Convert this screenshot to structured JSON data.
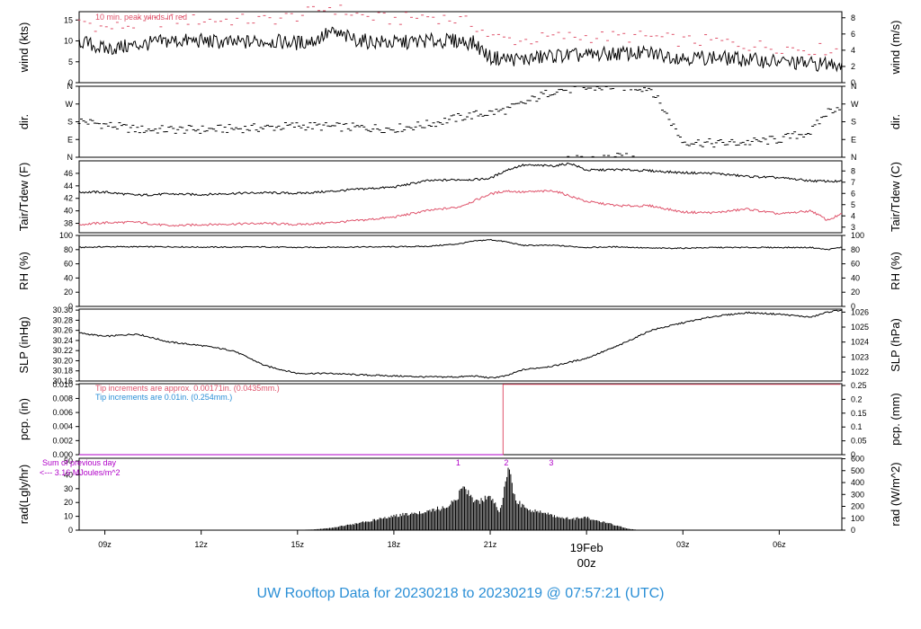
{
  "chart_data": {
    "type": "line",
    "title": "UW Rooftop Data for 20230218  to  20230219 @ 07:57:21  (UTC)",
    "x_ticks": [
      "09z",
      "12z",
      "15z",
      "18z",
      "21z",
      "03z",
      "06z"
    ],
    "date_label": "19Feb",
    "date_sublabel": "00z",
    "colors": {
      "primary": "#000000",
      "secondary": "#df536b",
      "tip_note_1": "#df536b",
      "tip_note_2": "#2b8fd6",
      "sun_notes": "#b000c8",
      "title": "#2b8fd6"
    },
    "panels": [
      {
        "id": "wind",
        "ylabel_left": "wind (kts)",
        "ylabel_right": "wind (m/s)",
        "ylim_left": [
          0,
          17
        ],
        "yticks_left": [
          "0",
          "5",
          "10",
          "15"
        ],
        "ylim_right": [
          0,
          8.75
        ],
        "yticks_right": [
          "0",
          "2",
          "4",
          "6",
          "8"
        ],
        "note": "10 min. peak winds in red",
        "series": [
          {
            "key": "wind_speed",
            "color": "#000000",
            "x_hours": [
              8.2,
              9,
              10,
              11,
              12,
              13,
              14,
              15,
              15.5,
              16,
              16.5,
              17,
              18,
              19,
              20,
              20.5,
              21,
              22,
              23,
              24,
              25,
              26,
              27,
              28,
              29,
              30,
              31,
              31.9
            ],
            "y": [
              10,
              8,
              9,
              10,
              10,
              9.5,
              10,
              9.5,
              10,
              12,
              11,
              10,
              9.5,
              10,
              10,
              9.5,
              6,
              5.5,
              6.5,
              6.5,
              7,
              7,
              6,
              6,
              5.5,
              5,
              4.5,
              4.5
            ]
          },
          {
            "key": "wind_peak",
            "color": "#df536b",
            "x_hours": [
              8.2,
              9,
              10,
              11,
              12,
              13,
              14,
              15,
              15.5,
              16,
              16.5,
              17,
              18,
              19,
              20,
              20.5,
              21,
              22,
              23,
              24,
              25,
              26,
              27,
              28,
              29,
              30,
              31,
              31.9
            ],
            "y": [
              15,
              13,
              14,
              15,
              15,
              15,
              15,
              16,
              17,
              18,
              17,
              16,
              15,
              16,
              15,
              14,
              11,
              10,
              11,
              11,
              11,
              11,
              10,
              10,
              9,
              8.5,
              8,
              8
            ]
          }
        ]
      },
      {
        "id": "dir",
        "ylabel_left": "dir.",
        "ylabel_right": "dir.",
        "ylim_left": [
          0,
          360
        ],
        "yticks_left": [
          "N",
          "E",
          "S",
          "W",
          "N"
        ],
        "ylim_right": [
          0,
          360
        ],
        "yticks_right": [
          "N",
          "E",
          "S",
          "W",
          "N"
        ],
        "series": [
          {
            "key": "wind_dir",
            "color": "#000000",
            "style": "dashes",
            "x_hours": [
              8.2,
              9,
              10,
              11,
              12,
              13,
              14,
              15,
              16,
              17,
              18,
              19,
              20,
              20.5,
              21,
              21.5,
              22,
              23,
              24,
              25,
              26,
              27,
              28,
              29,
              30,
              31,
              31.5,
              31.9
            ],
            "y": [
              185,
              165,
              140,
              140,
              140,
              145,
              150,
              160,
              155,
              150,
              145,
              165,
              200,
              215,
              225,
              240,
              270,
              340,
              350,
              360,
              350,
              80,
              70,
              75,
              90,
              130,
              230,
              260
            ]
          }
        ]
      },
      {
        "id": "temp",
        "ylabel_left": "Tair/Tdew (F)",
        "ylabel_right": "Tair/Tdew (C)",
        "ylim_left": [
          36.5,
          48
        ],
        "yticks_left": [
          "38",
          "40",
          "42",
          "44",
          "46"
        ],
        "ylim_right": [
          2.5,
          8.9
        ],
        "yticks_right": [
          "3",
          "4",
          "5",
          "6",
          "7",
          "8"
        ],
        "series": [
          {
            "key": "t_air",
            "color": "#000000",
            "x_hours": [
              8.2,
              9,
              10,
              11,
              12,
              13,
              14,
              15,
              16,
              17,
              18,
              19,
              20,
              20.5,
              21,
              21.5,
              22,
              23,
              23.5,
              24,
              25,
              26,
              27,
              28,
              29,
              30,
              31,
              31.9
            ],
            "y": [
              43,
              43,
              42.5,
              42.7,
              42.6,
              42.8,
              42.9,
              42.8,
              43.1,
              43.5,
              43.8,
              44.8,
              45,
              45,
              45.2,
              46.5,
              47.3,
              47.2,
              47.6,
              46.5,
              46.6,
              46.4,
              46.1,
              46,
              45.5,
              45.3,
              44.8,
              44.7
            ]
          },
          {
            "key": "t_dew",
            "color": "#df536b",
            "x_hours": [
              8.2,
              9,
              10,
              11,
              12,
              13,
              14,
              15,
              16,
              17,
              18,
              19,
              20,
              20.5,
              21,
              21.5,
              22,
              23,
              24,
              25,
              26,
              27,
              28,
              29,
              30,
              31,
              31.5,
              31.9
            ],
            "y": [
              37.8,
              38.1,
              38.2,
              37.6,
              37.8,
              37.9,
              38,
              37.8,
              38.1,
              38.5,
              39,
              40,
              40.6,
              41.6,
              42.7,
              43.2,
              43,
              43.2,
              41.5,
              40.8,
              40.8,
              39.8,
              39.7,
              40.3,
              39.5,
              40,
              38.5,
              39.4
            ]
          }
        ]
      },
      {
        "id": "rh",
        "ylabel_left": "RH (%)",
        "ylabel_right": "RH (%)",
        "ylim_left": [
          0,
          100
        ],
        "yticks_left": [
          "0",
          "20",
          "40",
          "60",
          "80",
          "100"
        ],
        "ylim_right": [
          0,
          100
        ],
        "yticks_right": [
          "0",
          "20",
          "40",
          "60",
          "80",
          "100"
        ],
        "series": [
          {
            "key": "rh",
            "color": "#000000",
            "x_hours": [
              8.2,
              9,
              10,
              11,
              12,
              13,
              14,
              15,
              16,
              17,
              18,
              19,
              20,
              20.5,
              21,
              21.5,
              22,
              23,
              24,
              25,
              26,
              27,
              28,
              29,
              30,
              31,
              31.5,
              31.9
            ],
            "y": [
              83,
              84,
              84,
              84,
              83.5,
              83.5,
              83.8,
              83,
              83.5,
              83.7,
              84,
              84.5,
              88,
              92,
              94,
              91,
              86,
              86,
              83,
              84,
              82,
              82,
              83,
              83,
              83,
              83,
              80,
              83
            ]
          }
        ]
      },
      {
        "id": "slp",
        "ylabel_left": "SLP (inHg)",
        "ylabel_right": "SLP (hPa)",
        "ylim_left": [
          30.16,
          30.302
        ],
        "yticks_left": [
          "30.16",
          "30.18",
          "30.20",
          "30.22",
          "30.24",
          "30.26",
          "30.28",
          "30.30"
        ],
        "ylim_right": [
          1021.4,
          1026.2
        ],
        "yticks_right": [
          "1022",
          "1023",
          "1024",
          "1025",
          "1026"
        ],
        "series": [
          {
            "key": "slp",
            "color": "#000000",
            "x_hours": [
              8.2,
              9,
              10,
              11,
              12,
              13,
              14,
              15,
              16,
              17,
              18,
              19,
              20,
              20.5,
              21,
              21.5,
              22,
              23,
              24,
              25,
              26,
              27,
              28,
              29,
              30,
              31,
              31.5,
              31.9
            ],
            "y": [
              30.255,
              30.248,
              30.253,
              30.237,
              30.23,
              30.22,
              30.19,
              30.175,
              30.175,
              30.172,
              30.17,
              30.168,
              30.168,
              30.17,
              30.166,
              30.17,
              30.182,
              30.19,
              30.205,
              30.23,
              30.26,
              30.275,
              30.288,
              30.295,
              30.292,
              30.286,
              30.296,
              30.3
            ]
          }
        ]
      },
      {
        "id": "pcp",
        "ylabel_left": "pcp. (in)",
        "ylabel_right": "pcp. (mm)",
        "ylim_left": [
          0,
          0.0101
        ],
        "yticks_left": [
          "0.000",
          "0.002",
          "0.004",
          "0.006",
          "0.008",
          "0.010"
        ],
        "ylim_right": [
          0,
          0.2565
        ],
        "yticks_right": [
          "0",
          "0.05",
          "0.1",
          "0.15",
          "0.2",
          "0.25"
        ],
        "notes": [
          {
            "text": "Tip increments are approx. 0.00171in. (0.0435mm.)",
            "color": "#df536b"
          },
          {
            "text": "Tip increments are 0.01in. (0.254mm.)",
            "color": "#2b8fd6"
          }
        ],
        "series": [
          {
            "key": "pcp_fine",
            "color": "#df536b",
            "style": "step",
            "x_hours": [
              8.2,
              21.4,
              21.4,
              31.9
            ],
            "y": [
              0,
              0,
              0.01,
              0.01
            ]
          },
          {
            "key": "pcp_coarse",
            "color": "#b000c8",
            "style": "step",
            "x_hours": [
              8.2,
              21.4
            ],
            "y": [
              0,
              0
            ]
          }
        ]
      },
      {
        "id": "rad",
        "ylabel_left": "rad(Lgly/hr)",
        "ylabel_right": "rad (W/m^2)",
        "ylim_left": [
          0,
          52
        ],
        "yticks_left": [
          "0",
          "10",
          "20",
          "30",
          "40",
          "50"
        ],
        "ylim_right": [
          0,
          604
        ],
        "yticks_right": [
          "0",
          "100",
          "200",
          "300",
          "400",
          "500",
          "600"
        ],
        "notes": [
          {
            "text": "Sum of previous day",
            "color": "#b000c8"
          },
          {
            "text": "<--- 3.16 MJoules/m^2",
            "color": "#b000c8"
          }
        ],
        "markers": [
          {
            "label": "1",
            "x_hour": 20.0
          },
          {
            "label": "2",
            "x_hour": 21.5
          },
          {
            "label": "3",
            "x_hour": 22.9
          }
        ],
        "series": [
          {
            "key": "solar",
            "color": "#000000",
            "style": "bars",
            "x_hours": [
              15,
              15.5,
              16,
              16.5,
              17,
              17.5,
              18,
              18.5,
              19,
              19.5,
              19.8,
              20.2,
              20.5,
              20.8,
              21,
              21.3,
              21.6,
              21.7,
              21.8,
              22.2,
              22.6,
              23,
              23.5,
              24,
              24.5,
              25,
              25.3,
              25.6
            ],
            "y": [
              0.2,
              0.5,
              1.5,
              3.5,
              5.5,
              8,
              10,
              12,
              14,
              16,
              20,
              30,
              20,
              22,
              24,
              14,
              45,
              28,
              22,
              14,
              13,
              10,
              8,
              9,
              6,
              3,
              1,
              0.2
            ]
          }
        ]
      }
    ]
  }
}
